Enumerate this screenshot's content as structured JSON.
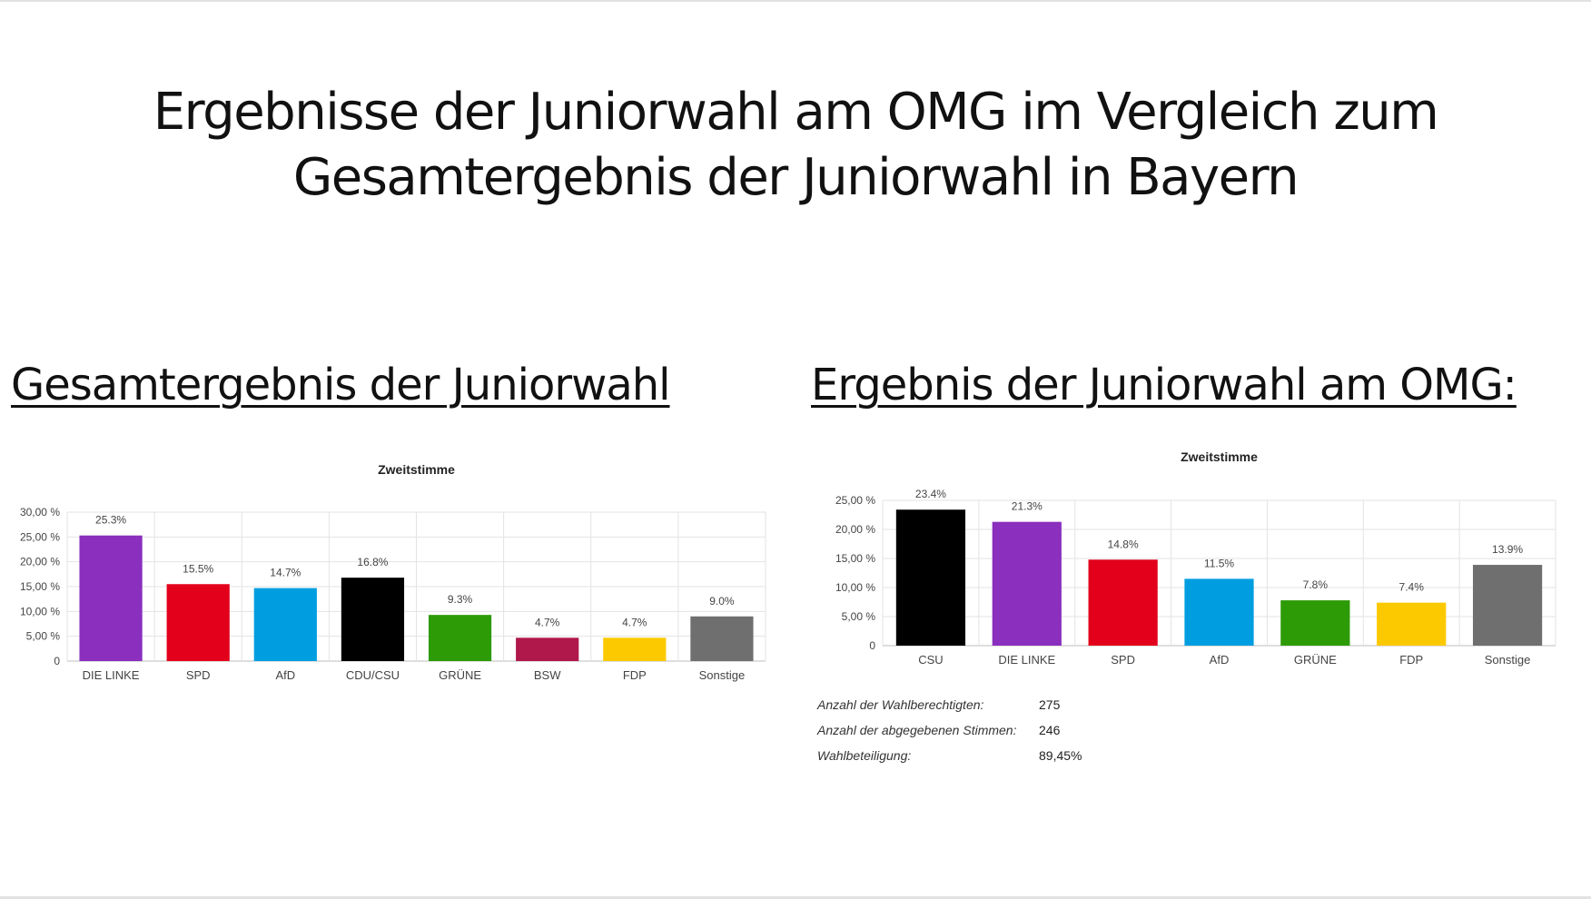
{
  "slide": {
    "title_line1": "Ergebnisse der Juniorwahl am OMG im Vergleich zum",
    "title_line2": "Gesamtergebnis der Juniorwahl in Bayern",
    "section_left": "Gesamtergebnis der Juniorwahl",
    "section_right": "Ergebnis der Juniorwahl am OMG:"
  },
  "stats": [
    {
      "label": "Anzahl der Wahlberechtigten:",
      "value": "275"
    },
    {
      "label": "Anzahl der abgegebenen Stimmen:",
      "value": "246"
    },
    {
      "label": "Wahlbeteiligung:",
      "value": "89,45%"
    }
  ],
  "chart_data": [
    {
      "type": "bar",
      "title": "Zweitstimme",
      "categories": [
        "DIE LINKE",
        "SPD",
        "AfD",
        "CDU/CSU",
        "GRÜNE",
        "BSW",
        "FDP",
        "Sonstige"
      ],
      "values": [
        25.3,
        15.5,
        14.7,
        16.8,
        9.3,
        4.7,
        4.7,
        9.0
      ],
      "data_labels": [
        "25.3%",
        "15.5%",
        "14.7%",
        "16.8%",
        "9.3%",
        "4.7%",
        "4.7%",
        "9.0%"
      ],
      "colors": [
        "#8a2fbe",
        "#e3001b",
        "#009ee0",
        "#000000",
        "#2d9b06",
        "#b0174a",
        "#fcc900",
        "#6f6f6f"
      ],
      "yticks": [
        0,
        5,
        10,
        15,
        20,
        25,
        30
      ],
      "ytick_labels": [
        "0",
        "5,00 %",
        "10,00 %",
        "15,00 %",
        "20,00 %",
        "25,00 %",
        "30,00 %"
      ],
      "ylim": [
        0,
        30
      ],
      "grid": true
    },
    {
      "type": "bar",
      "title": "Zweitstimme",
      "categories": [
        "CSU",
        "DIE LINKE",
        "SPD",
        "AfD",
        "GRÜNE",
        "FDP",
        "Sonstige"
      ],
      "values": [
        23.4,
        21.3,
        14.8,
        11.5,
        7.8,
        7.4,
        13.9
      ],
      "data_labels": [
        "23.4%",
        "21.3%",
        "14.8%",
        "11.5%",
        "7.8%",
        "7.4%",
        "13.9%"
      ],
      "colors": [
        "#000000",
        "#8a2fbe",
        "#e3001b",
        "#009ee0",
        "#2d9b06",
        "#fcc900",
        "#6f6f6f"
      ],
      "yticks": [
        0,
        5,
        10,
        15,
        20,
        25
      ],
      "ytick_labels": [
        "0",
        "5,00 %",
        "10,00 %",
        "15,00 %",
        "20,00 %",
        "25,00 %"
      ],
      "ylim": [
        0,
        25
      ],
      "grid": true
    }
  ]
}
